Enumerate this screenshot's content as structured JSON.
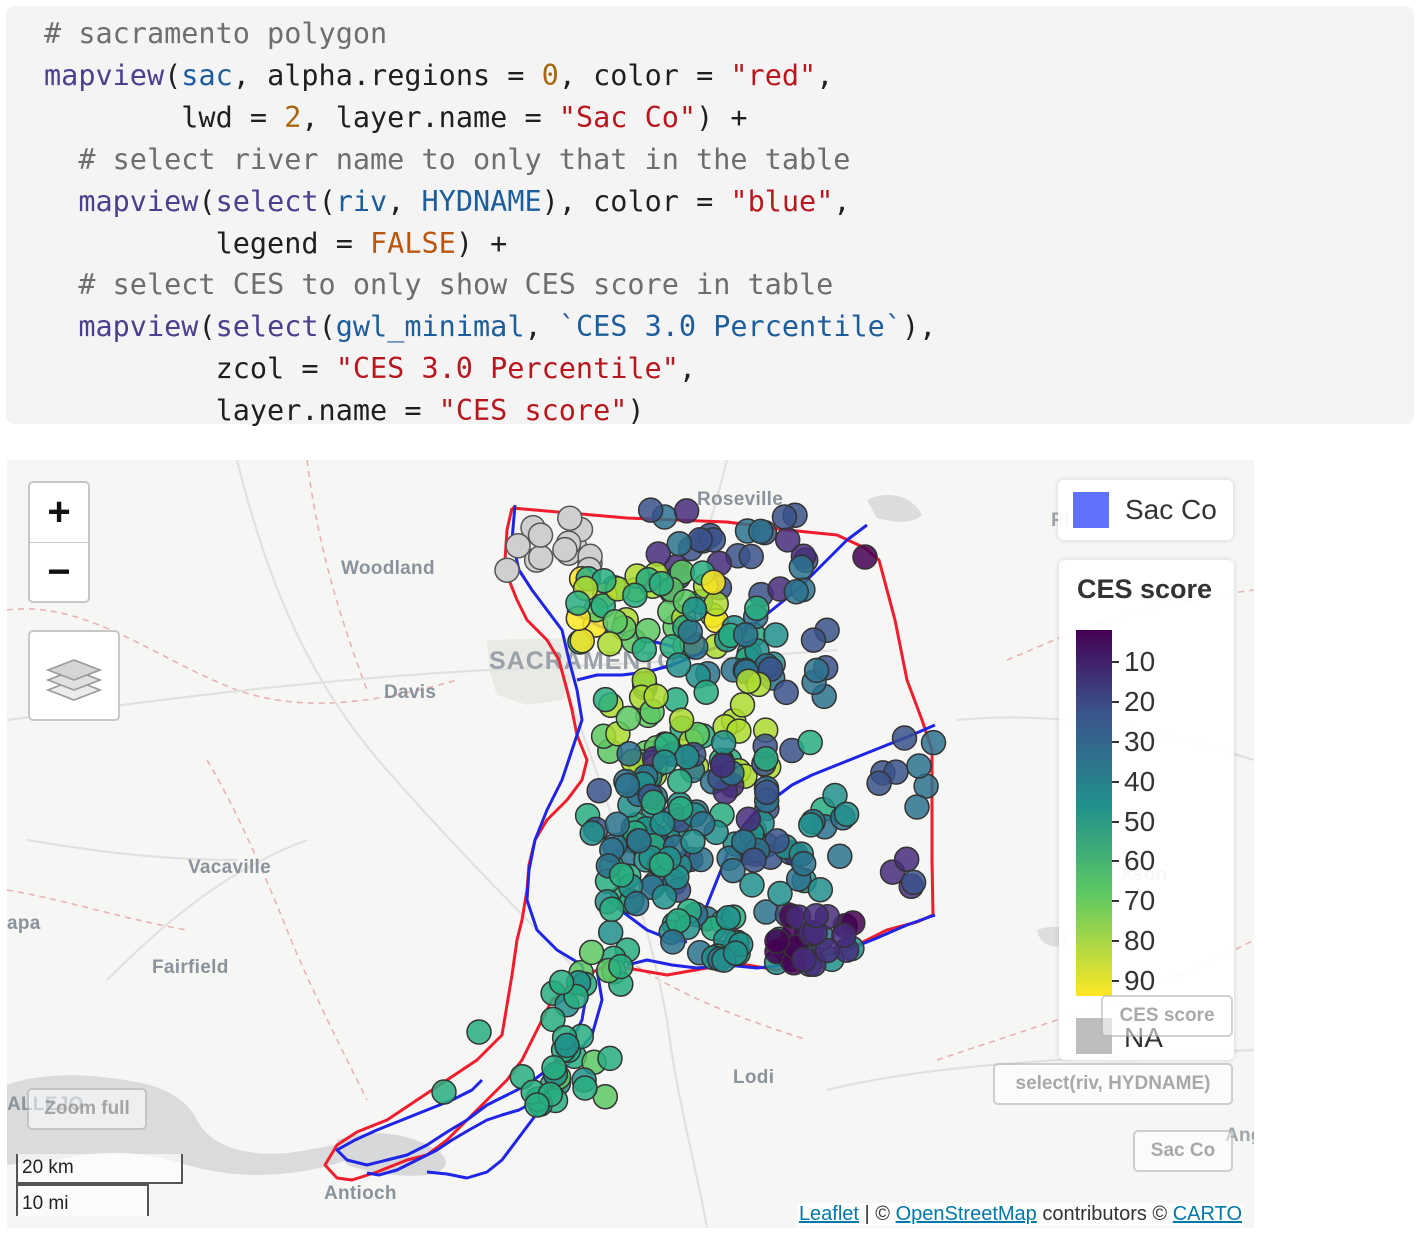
{
  "code": {
    "lines": [
      [
        {
          "t": "# sacramento polygon",
          "c": "com"
        }
      ],
      [
        {
          "t": "mapview",
          "c": "fn"
        },
        {
          "t": "(",
          "c": ""
        },
        {
          "t": "sac",
          "c": "var"
        },
        {
          "t": ", alpha.regions = ",
          "c": ""
        },
        {
          "t": "0",
          "c": "num"
        },
        {
          "t": ", color = ",
          "c": ""
        },
        {
          "t": "\"red\"",
          "c": "str"
        },
        {
          "t": ",",
          "c": ""
        }
      ],
      [
        {
          "t": "        lwd = ",
          "c": ""
        },
        {
          "t": "2",
          "c": "num"
        },
        {
          "t": ", layer.name = ",
          "c": ""
        },
        {
          "t": "\"Sac Co\"",
          "c": "str"
        },
        {
          "t": ") +",
          "c": ""
        }
      ],
      [
        {
          "t": "  ",
          "c": ""
        },
        {
          "t": "# select river name to only that in the table",
          "c": "com"
        }
      ],
      [
        {
          "t": "  ",
          "c": ""
        },
        {
          "t": "mapview",
          "c": "fn"
        },
        {
          "t": "(",
          "c": ""
        },
        {
          "t": "select",
          "c": "fn"
        },
        {
          "t": "(",
          "c": ""
        },
        {
          "t": "riv",
          "c": "var"
        },
        {
          "t": ", ",
          "c": ""
        },
        {
          "t": "HYDNAME",
          "c": "var"
        },
        {
          "t": "), color = ",
          "c": ""
        },
        {
          "t": "\"blue\"",
          "c": "str"
        },
        {
          "t": ",",
          "c": ""
        }
      ],
      [
        {
          "t": "          legend = ",
          "c": ""
        },
        {
          "t": "FALSE",
          "c": "kw"
        },
        {
          "t": ") +",
          "c": ""
        }
      ],
      [
        {
          "t": "  ",
          "c": ""
        },
        {
          "t": "# select CES to only show CES score in table",
          "c": "com"
        }
      ],
      [
        {
          "t": "  ",
          "c": ""
        },
        {
          "t": "mapview",
          "c": "fn"
        },
        {
          "t": "(",
          "c": ""
        },
        {
          "t": "select",
          "c": "fn"
        },
        {
          "t": "(",
          "c": ""
        },
        {
          "t": "gwl_minimal",
          "c": "var"
        },
        {
          "t": ", ",
          "c": ""
        },
        {
          "t": "`CES 3.0 Percentile`",
          "c": "var"
        },
        {
          "t": "),",
          "c": ""
        }
      ],
      [
        {
          "t": "          zcol = ",
          "c": ""
        },
        {
          "t": "\"CES 3.0 Percentile\"",
          "c": "str"
        },
        {
          "t": ",",
          "c": ""
        }
      ],
      [
        {
          "t": "          layer.name = ",
          "c": ""
        },
        {
          "t": "\"CES score\"",
          "c": "str"
        },
        {
          "t": ")",
          "c": ""
        }
      ]
    ],
    "colors": {
      "com": "#6e6e6e",
      "fn": "#4c3f8d",
      "var": "#1d5d9b",
      "str": "#b8171d",
      "num": "#a8670f",
      "kw": "#b8570f"
    }
  },
  "map": {
    "places": {
      "roseville": "Roseville",
      "placerville_partial": "Pl",
      "woodland": "Woodland",
      "sacramento": "SACRAMENTO",
      "davis": "Davis",
      "vacaville": "Vacaville",
      "napa_partial": "apa",
      "fairfield": "Fairfield",
      "lodi": "Lodi",
      "vallejo": "ALLEJO",
      "antioch": "Antioch",
      "jackson_partial": "kson",
      "angels_partial": "Ang"
    },
    "zoom_in_label": "+",
    "zoom_out_label": "−",
    "layers_icon": "layers-icon",
    "legend_sac": {
      "label": "Sac Co",
      "color": "#6071fd"
    },
    "legend_ces": {
      "title": "CES score",
      "ticks": [
        "10",
        "20",
        "30",
        "40",
        "50",
        "60",
        "70",
        "80",
        "90"
      ],
      "na_label": "NA",
      "na_color": "#bebebe",
      "palette": [
        "#440154",
        "#3b528b",
        "#21908c",
        "#5dc863",
        "#fde725"
      ]
    },
    "layer_buttons": {
      "ces_score": "CES score",
      "riv": "select(riv, HYDNAME)",
      "sac_co": "Sac Co",
      "zoom_full": "Zoom full"
    },
    "scale": {
      "km": "20 km",
      "mi": "10 mi"
    },
    "attribution": {
      "leaflet": "Leaflet",
      "sep1": " | © ",
      "osm": "OpenStreetMap",
      "mid": " contributors © ",
      "carto": "CARTO"
    },
    "line_colors": {
      "county": "#f01e2c",
      "river": "#1f25e6"
    }
  }
}
